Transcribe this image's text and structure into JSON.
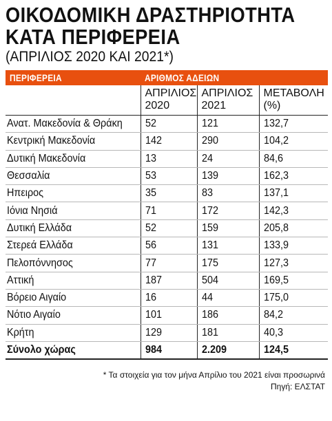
{
  "header": {
    "title_line1": "ΟΙΚΟΔΟΜΙΚΗ ΔΡΑΣΤΗΡΙΟΤΗΤΑ",
    "title_line2": "ΚΑΤΑ ΠΕΡΙΦΕΡΕΙΑ",
    "subtitle": "(ΑΠΡΙΛΙΟΣ 2020 ΚΑΙ 2021*)"
  },
  "table": {
    "band_left": "ΠΕΡΙΦΕΡΕΙΑ",
    "band_right": "ΑΡΙΘΜΟΣ ΑΔΕΙΩΝ",
    "accent_color": "#e8500f",
    "columns": [
      "ΑΠΡΙΛΙΟΣ 2020",
      "ΑΠΡΙΛΙΟΣ 2021",
      "ΜΕΤΑΒΟΛΗ (%)"
    ],
    "col_line1": [
      "ΑΠΡΙΛΙΟΣ",
      "ΑΠΡΙΛΙΟΣ",
      "ΜΕΤΑΒΟΛΗ"
    ],
    "col_line2": [
      "2020",
      "2021",
      "(%)"
    ],
    "rows": [
      {
        "region": "Ανατ. Μακεδονία & Θράκη",
        "apr2020": "52",
        "apr2021": "121",
        "change": "132,7"
      },
      {
        "region": "Κεντρική Μακεδονία",
        "apr2020": "142",
        "apr2021": "290",
        "change": "104,2"
      },
      {
        "region": "Δυτική Μακεδονία",
        "apr2020": "13",
        "apr2021": "24",
        "change": "84,6"
      },
      {
        "region": "Θεσσαλία",
        "apr2020": "53",
        "apr2021": "139",
        "change": "162,3"
      },
      {
        "region": "Ηπειρος",
        "apr2020": "35",
        "apr2021": "83",
        "change": "137,1"
      },
      {
        "region": "Ιόνια Νησιά",
        "apr2020": "71",
        "apr2021": "172",
        "change": "142,3"
      },
      {
        "region": "Δυτική Ελλάδα",
        "apr2020": "52",
        "apr2021": "159",
        "change": "205,8"
      },
      {
        "region": "Στερεά Ελλάδα",
        "apr2020": "56",
        "apr2021": "131",
        "change": "133,9"
      },
      {
        "region": "Πελοπόννησος",
        "apr2020": "77",
        "apr2021": "175",
        "change": "127,3"
      },
      {
        "region": "Αττική",
        "apr2020": "187",
        "apr2021": "504",
        "change": "169,5"
      },
      {
        "region": "Βόρειο Αιγαίο",
        "apr2020": "16",
        "apr2021": "44",
        "change": "175,0"
      },
      {
        "region": "Νότιο Αιγαίο",
        "apr2020": "101",
        "apr2021": "186",
        "change": "84,2"
      },
      {
        "region": "Κρήτη",
        "apr2020": "129",
        "apr2021": "181",
        "change": "40,3"
      }
    ],
    "total": {
      "region": "Σύνολο χώρας",
      "apr2020": "984",
      "apr2021": "2.209",
      "change": "124,5"
    }
  },
  "footnote": {
    "note": "* Τα στοιχεία για τον μήνα Απρίλιο του 2021 είναι προσωρινά",
    "source": "Πηγή: ΕΛΣΤΑΤ"
  }
}
